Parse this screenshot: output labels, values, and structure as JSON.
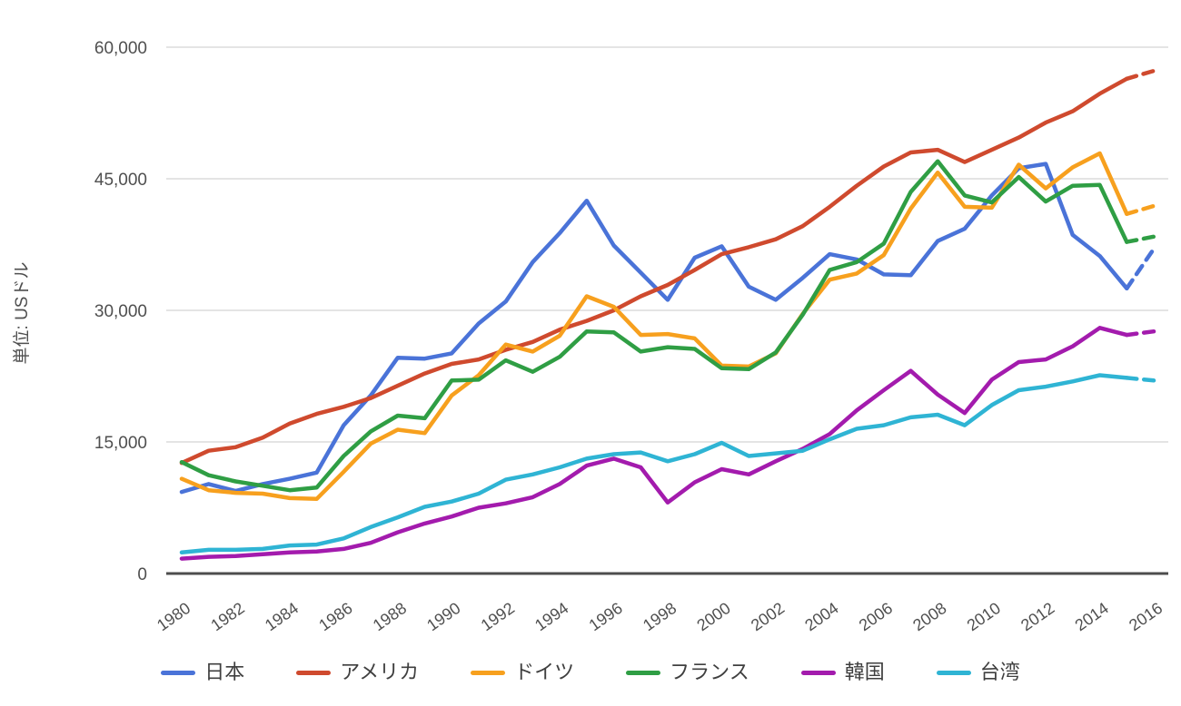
{
  "chart_data": {
    "type": "line",
    "title": "",
    "ylabel": "単位: USドル",
    "xlabel": "",
    "x_start": 1980,
    "x_end": 2016,
    "x": [
      1980,
      1981,
      1982,
      1983,
      1984,
      1985,
      1986,
      1987,
      1988,
      1989,
      1990,
      1991,
      1992,
      1993,
      1994,
      1995,
      1996,
      1997,
      1998,
      1999,
      2000,
      2001,
      2002,
      2003,
      2004,
      2005,
      2006,
      2007,
      2008,
      2009,
      2010,
      2011,
      2012,
      2013,
      2014,
      2015,
      2016
    ],
    "x_tick_labels": [
      "1980",
      "1982",
      "1984",
      "1986",
      "1988",
      "1990",
      "1992",
      "1994",
      "1996",
      "1998",
      "2000",
      "2002",
      "2004",
      "2006",
      "2008",
      "2010",
      "2012",
      "2014",
      "2016"
    ],
    "ylim": [
      0,
      60000
    ],
    "y_ticks": [
      0,
      15000,
      30000,
      45000,
      60000
    ],
    "y_tick_labels": [
      "0",
      "15,000",
      "30,000",
      "45,000",
      "60,000"
    ],
    "grid": true,
    "legend_position": "bottom",
    "note": "final segment (2015-2016) drawn dashed = estimate",
    "series": [
      {
        "id": "japan",
        "name": "日本",
        "color": "#4a73d8",
        "values": [
          9300,
          10200,
          9400,
          10200,
          10800,
          11500,
          16900,
          20300,
          24600,
          24500,
          25100,
          28500,
          31000,
          35500,
          38800,
          42500,
          37400,
          34300,
          31200,
          36000,
          37300,
          32700,
          31200,
          33700,
          36400,
          35800,
          34100,
          34000,
          37900,
          39300,
          43100,
          46200,
          46700,
          38600,
          36200,
          32500,
          37000
        ]
      },
      {
        "id": "usa",
        "name": "アメリカ",
        "color": "#cf4a2e",
        "values": [
          12600,
          14000,
          14400,
          15500,
          17100,
          18200,
          19000,
          20000,
          21400,
          22800,
          23900,
          24400,
          25500,
          26400,
          27800,
          28800,
          30000,
          31600,
          32900,
          34600,
          36400,
          37200,
          38100,
          39600,
          41800,
          44200,
          46400,
          48000,
          48300,
          46900,
          48300,
          49700,
          51400,
          52700,
          54700,
          56400,
          57300
        ]
      },
      {
        "id": "germany",
        "name": "ドイツ",
        "color": "#f7a01e",
        "values": [
          10800,
          9500,
          9200,
          9100,
          8600,
          8500,
          11600,
          14800,
          16400,
          16000,
          20300,
          22600,
          26100,
          25300,
          27100,
          31600,
          30400,
          27200,
          27300,
          26800,
          23700,
          23600,
          25100,
          29600,
          33500,
          34200,
          36300,
          41600,
          45700,
          41800,
          41700,
          46600,
          43900,
          46300,
          47900,
          41000,
          41900
        ]
      },
      {
        "id": "france",
        "name": "フランス",
        "color": "#2f9e44",
        "values": [
          12700,
          11200,
          10500,
          10000,
          9500,
          9800,
          13400,
          16200,
          18000,
          17700,
          22000,
          22100,
          24300,
          23000,
          24700,
          27600,
          27500,
          25300,
          25800,
          25600,
          23400,
          23300,
          25200,
          29500,
          34600,
          35500,
          37600,
          43500,
          47000,
          43100,
          42300,
          45200,
          42400,
          44200,
          44300,
          37800,
          38400
        ]
      },
      {
        "id": "korea",
        "name": "韓国",
        "color": "#a31bad",
        "values": [
          1700,
          1900,
          2000,
          2200,
          2400,
          2500,
          2800,
          3500,
          4700,
          5700,
          6500,
          7500,
          8000,
          8700,
          10200,
          12300,
          13100,
          12100,
          8100,
          10400,
          11900,
          11300,
          12800,
          14200,
          15900,
          18600,
          20900,
          23100,
          20400,
          18300,
          22100,
          24100,
          24400,
          25900,
          28000,
          27200,
          27600
        ]
      },
      {
        "id": "taiwan",
        "name": "台湾",
        "color": "#2fb4d4",
        "values": [
          2400,
          2700,
          2700,
          2800,
          3200,
          3300,
          4000,
          5300,
          6400,
          7600,
          8200,
          9100,
          10700,
          11300,
          12100,
          13100,
          13600,
          13800,
          12800,
          13600,
          14900,
          13400,
          13700,
          14000,
          15300,
          16500,
          16900,
          17800,
          18100,
          16900,
          19200,
          20900,
          21300,
          21900,
          22600,
          22300,
          22000
        ]
      }
    ],
    "style": {
      "gridline_color": "#e4e4e4",
      "baseline_color": "#4d4d4d",
      "tick_label_color": "#4f4f4f",
      "legend_label_color": "#3f3f3f",
      "background": "#ffffff"
    }
  }
}
